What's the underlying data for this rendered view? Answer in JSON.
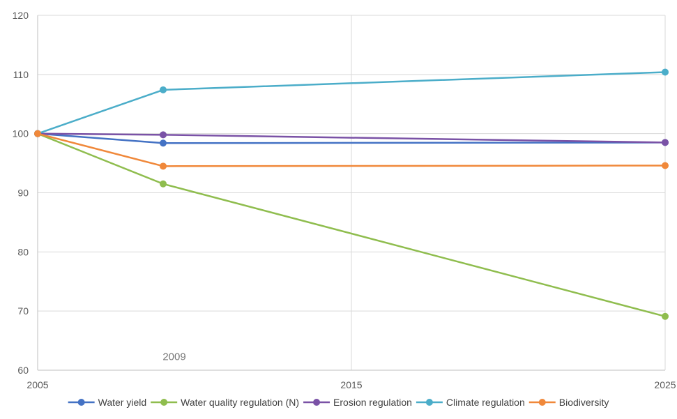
{
  "chart_data": {
    "type": "line",
    "title": "",
    "xlabel": "",
    "ylabel": "",
    "x": [
      2005,
      2009,
      2025
    ],
    "xlim": [
      2005,
      2025
    ],
    "ylim": [
      60,
      120
    ],
    "x_ticks": [
      2005,
      2015,
      2025
    ],
    "y_ticks": [
      60,
      70,
      80,
      90,
      100,
      110,
      120
    ],
    "grid": "on",
    "legend_position": "bottom",
    "annotations": [
      {
        "text": "2009",
        "x": 2009,
        "y": 61
      }
    ],
    "series": [
      {
        "name": "Water yield",
        "color": "#4472c4",
        "values": [
          100,
          98.4,
          98.5
        ]
      },
      {
        "name": "Water quality regulation (N)",
        "color": "#8fbd4e",
        "values": [
          100,
          91.5,
          69.1
        ]
      },
      {
        "name": "Erosion regulation",
        "color": "#7a52a6",
        "values": [
          100,
          99.8,
          98.5
        ]
      },
      {
        "name": "Climate regulation",
        "color": "#4badc9",
        "values": [
          100,
          107.4,
          110.4
        ]
      },
      {
        "name": "Biodiversity",
        "color": "#f0883a",
        "values": [
          100,
          94.5,
          94.6
        ]
      }
    ]
  }
}
